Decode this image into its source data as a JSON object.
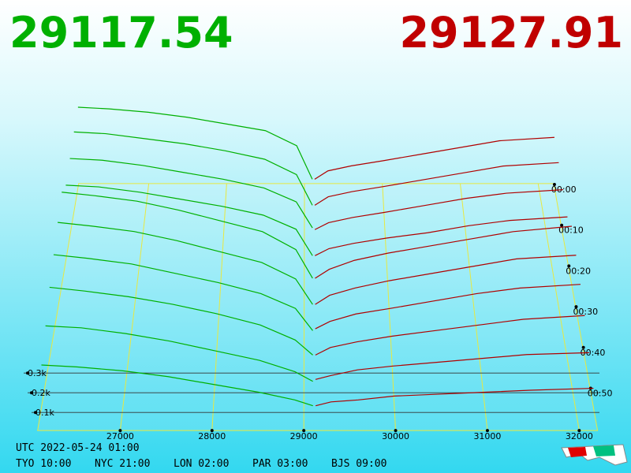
{
  "chart_data": {
    "type": "depth3d",
    "bid": 29117.54,
    "ask": 29127.91,
    "bid_color": "#00b000",
    "ask_color": "#b00000",
    "clock": "UTC 2022-05-24 01:00",
    "zones": [
      "TYO 10:00",
      "NYC 21:00",
      "LON 02:00",
      "PAR 03:00",
      "BJS 09:00"
    ],
    "xlim": [
      26100,
      32200
    ],
    "xticks": [
      27000,
      28000,
      29000,
      30000,
      31000,
      32000
    ],
    "yticks": [
      {
        "value": 0.1,
        "label": "0.1k"
      },
      {
        "value": 0.2,
        "label": "0.2k"
      },
      {
        "value": 0.3,
        "label": "0.3k"
      }
    ],
    "tticks": [
      {
        "value": 0,
        "label": "00:00"
      },
      {
        "value": 10,
        "label": "00:10"
      },
      {
        "value": 20,
        "label": "00:20"
      },
      {
        "value": 30,
        "label": "00:30"
      },
      {
        "value": 40,
        "label": "00:40"
      },
      {
        "value": 50,
        "label": "00:50"
      }
    ],
    "bid_prices": [
      29100,
      28900,
      28500,
      28000,
      27500,
      27000,
      26500,
      26100
    ],
    "ask_prices": [
      29130,
      29300,
      29600,
      30000,
      30500,
      31000,
      31500,
      32200
    ],
    "snapshots": [
      {
        "time": 0,
        "bids": [
          0.05,
          0.25,
          0.34,
          0.38,
          0.42,
          0.45,
          0.47,
          0.48
        ],
        "asks": [
          0.05,
          0.1,
          0.13,
          0.16,
          0.2,
          0.24,
          0.28,
          0.3
        ]
      },
      {
        "time": 6,
        "bids": [
          0.04,
          0.22,
          0.31,
          0.36,
          0.4,
          0.43,
          0.46,
          0.47
        ],
        "asks": [
          0.04,
          0.09,
          0.12,
          0.15,
          0.19,
          0.23,
          0.27,
          0.29
        ]
      },
      {
        "time": 12,
        "bids": [
          0.05,
          0.2,
          0.28,
          0.33,
          0.37,
          0.41,
          0.44,
          0.45
        ],
        "asks": [
          0.04,
          0.08,
          0.11,
          0.14,
          0.18,
          0.22,
          0.25,
          0.27
        ]
      },
      {
        "time": 18,
        "bids": [
          0.03,
          0.18,
          0.26,
          0.31,
          0.35,
          0.39,
          0.42,
          0.43
        ],
        "asks": [
          0.03,
          0.07,
          0.1,
          0.13,
          0.16,
          0.2,
          0.23,
          0.25
        ]
      },
      {
        "time": 24,
        "bids": [
          0.04,
          0.2,
          0.3,
          0.36,
          0.42,
          0.47,
          0.5,
          0.52
        ],
        "asks": [
          0.04,
          0.09,
          0.14,
          0.18,
          0.22,
          0.26,
          0.3,
          0.33
        ]
      },
      {
        "time": 30,
        "bids": [
          0.03,
          0.17,
          0.26,
          0.32,
          0.38,
          0.43,
          0.46,
          0.48
        ],
        "asks": [
          0.03,
          0.08,
          0.12,
          0.16,
          0.2,
          0.24,
          0.28,
          0.3
        ]
      },
      {
        "time": 36,
        "bids": [
          0.02,
          0.14,
          0.22,
          0.28,
          0.33,
          0.38,
          0.41,
          0.43
        ],
        "asks": [
          0.03,
          0.07,
          0.11,
          0.14,
          0.18,
          0.22,
          0.25,
          0.27
        ]
      },
      {
        "time": 42,
        "bids": [
          0.02,
          0.1,
          0.18,
          0.24,
          0.29,
          0.33,
          0.36,
          0.38
        ],
        "asks": [
          0.02,
          0.06,
          0.09,
          0.12,
          0.15,
          0.18,
          0.21,
          0.23
        ]
      },
      {
        "time": 48,
        "bids": [
          0.01,
          0.06,
          0.12,
          0.17,
          0.22,
          0.26,
          0.29,
          0.3
        ],
        "asks": [
          0.02,
          0.04,
          0.07,
          0.09,
          0.11,
          0.13,
          0.15,
          0.16
        ]
      },
      {
        "time": 54,
        "bids": [
          0.01,
          0.04,
          0.08,
          0.12,
          0.16,
          0.19,
          0.21,
          0.22
        ],
        "asks": [
          0.01,
          0.03,
          0.04,
          0.06,
          0.07,
          0.08,
          0.09,
          0.1
        ]
      }
    ]
  }
}
